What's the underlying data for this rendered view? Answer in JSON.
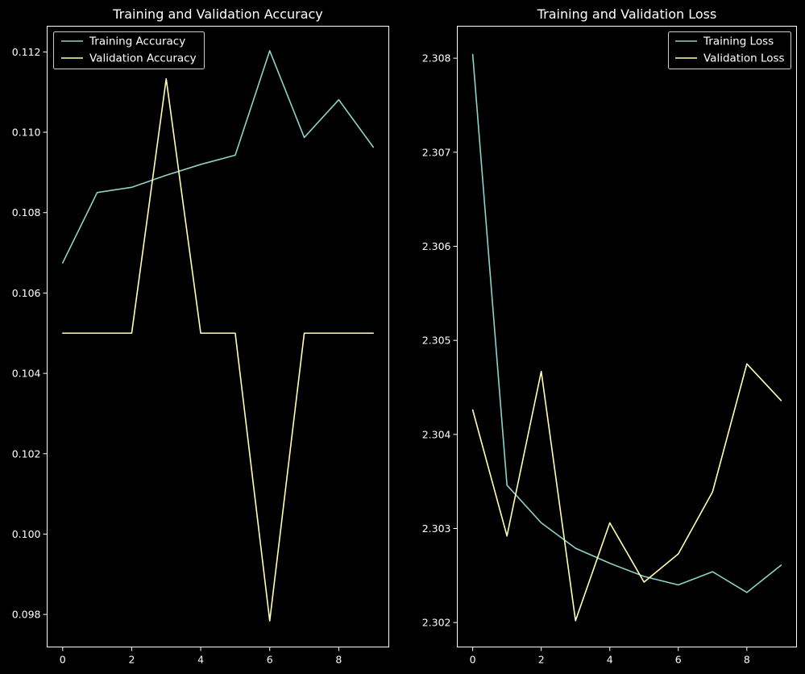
{
  "chart_data": [
    {
      "type": "line",
      "title": "Training and Validation Accuracy",
      "xlabel": "",
      "ylabel": "",
      "x": [
        0,
        1,
        2,
        3,
        4,
        5,
        6,
        7,
        8,
        9
      ],
      "xticks": [
        0,
        2,
        4,
        6,
        8
      ],
      "yticks": [
        0.098,
        0.1,
        0.102,
        0.104,
        0.106,
        0.108,
        0.11,
        0.112
      ],
      "ytick_decimals": 3,
      "xlim": [
        -0.45,
        9.45
      ],
      "ylim": [
        0.09719,
        0.11264
      ],
      "legend_position": "upper-left",
      "grid": false,
      "series": [
        {
          "name": "Training Accuracy",
          "color": "#8dd3c7",
          "values": [
            0.10675,
            0.1085,
            0.10863,
            0.10893,
            0.1092,
            0.10943,
            0.11203,
            0.10987,
            0.11081,
            0.10963
          ]
        },
        {
          "name": "Validation Accuracy",
          "color": "#ffffb3",
          "values": [
            0.105,
            0.105,
            0.105,
            0.11133,
            0.105,
            0.105,
            0.09784,
            0.105,
            0.105,
            0.105
          ]
        }
      ]
    },
    {
      "type": "line",
      "title": "Training and Validation Loss",
      "xlabel": "",
      "ylabel": "",
      "x": [
        0,
        1,
        2,
        3,
        4,
        5,
        6,
        7,
        8,
        9
      ],
      "xticks": [
        0,
        2,
        4,
        6,
        8
      ],
      "yticks": [
        2.302,
        2.303,
        2.304,
        2.305,
        2.306,
        2.307,
        2.308
      ],
      "ytick_decimals": 3,
      "xlim": [
        -0.45,
        9.45
      ],
      "ylim": [
        2.30174,
        2.30834
      ],
      "legend_position": "upper-right",
      "grid": false,
      "series": [
        {
          "name": "Training Loss",
          "color": "#8dd3c7",
          "values": [
            2.30804,
            2.30346,
            2.30306,
            2.30279,
            2.30263,
            2.30249,
            2.3024,
            2.30254,
            2.30232,
            2.30261
          ]
        },
        {
          "name": "Validation Loss",
          "color": "#ffffb3",
          "values": [
            2.30426,
            2.30292,
            2.30467,
            2.30202,
            2.30306,
            2.30243,
            2.30273,
            2.30339,
            2.30475,
            2.30436
          ]
        }
      ]
    }
  ]
}
